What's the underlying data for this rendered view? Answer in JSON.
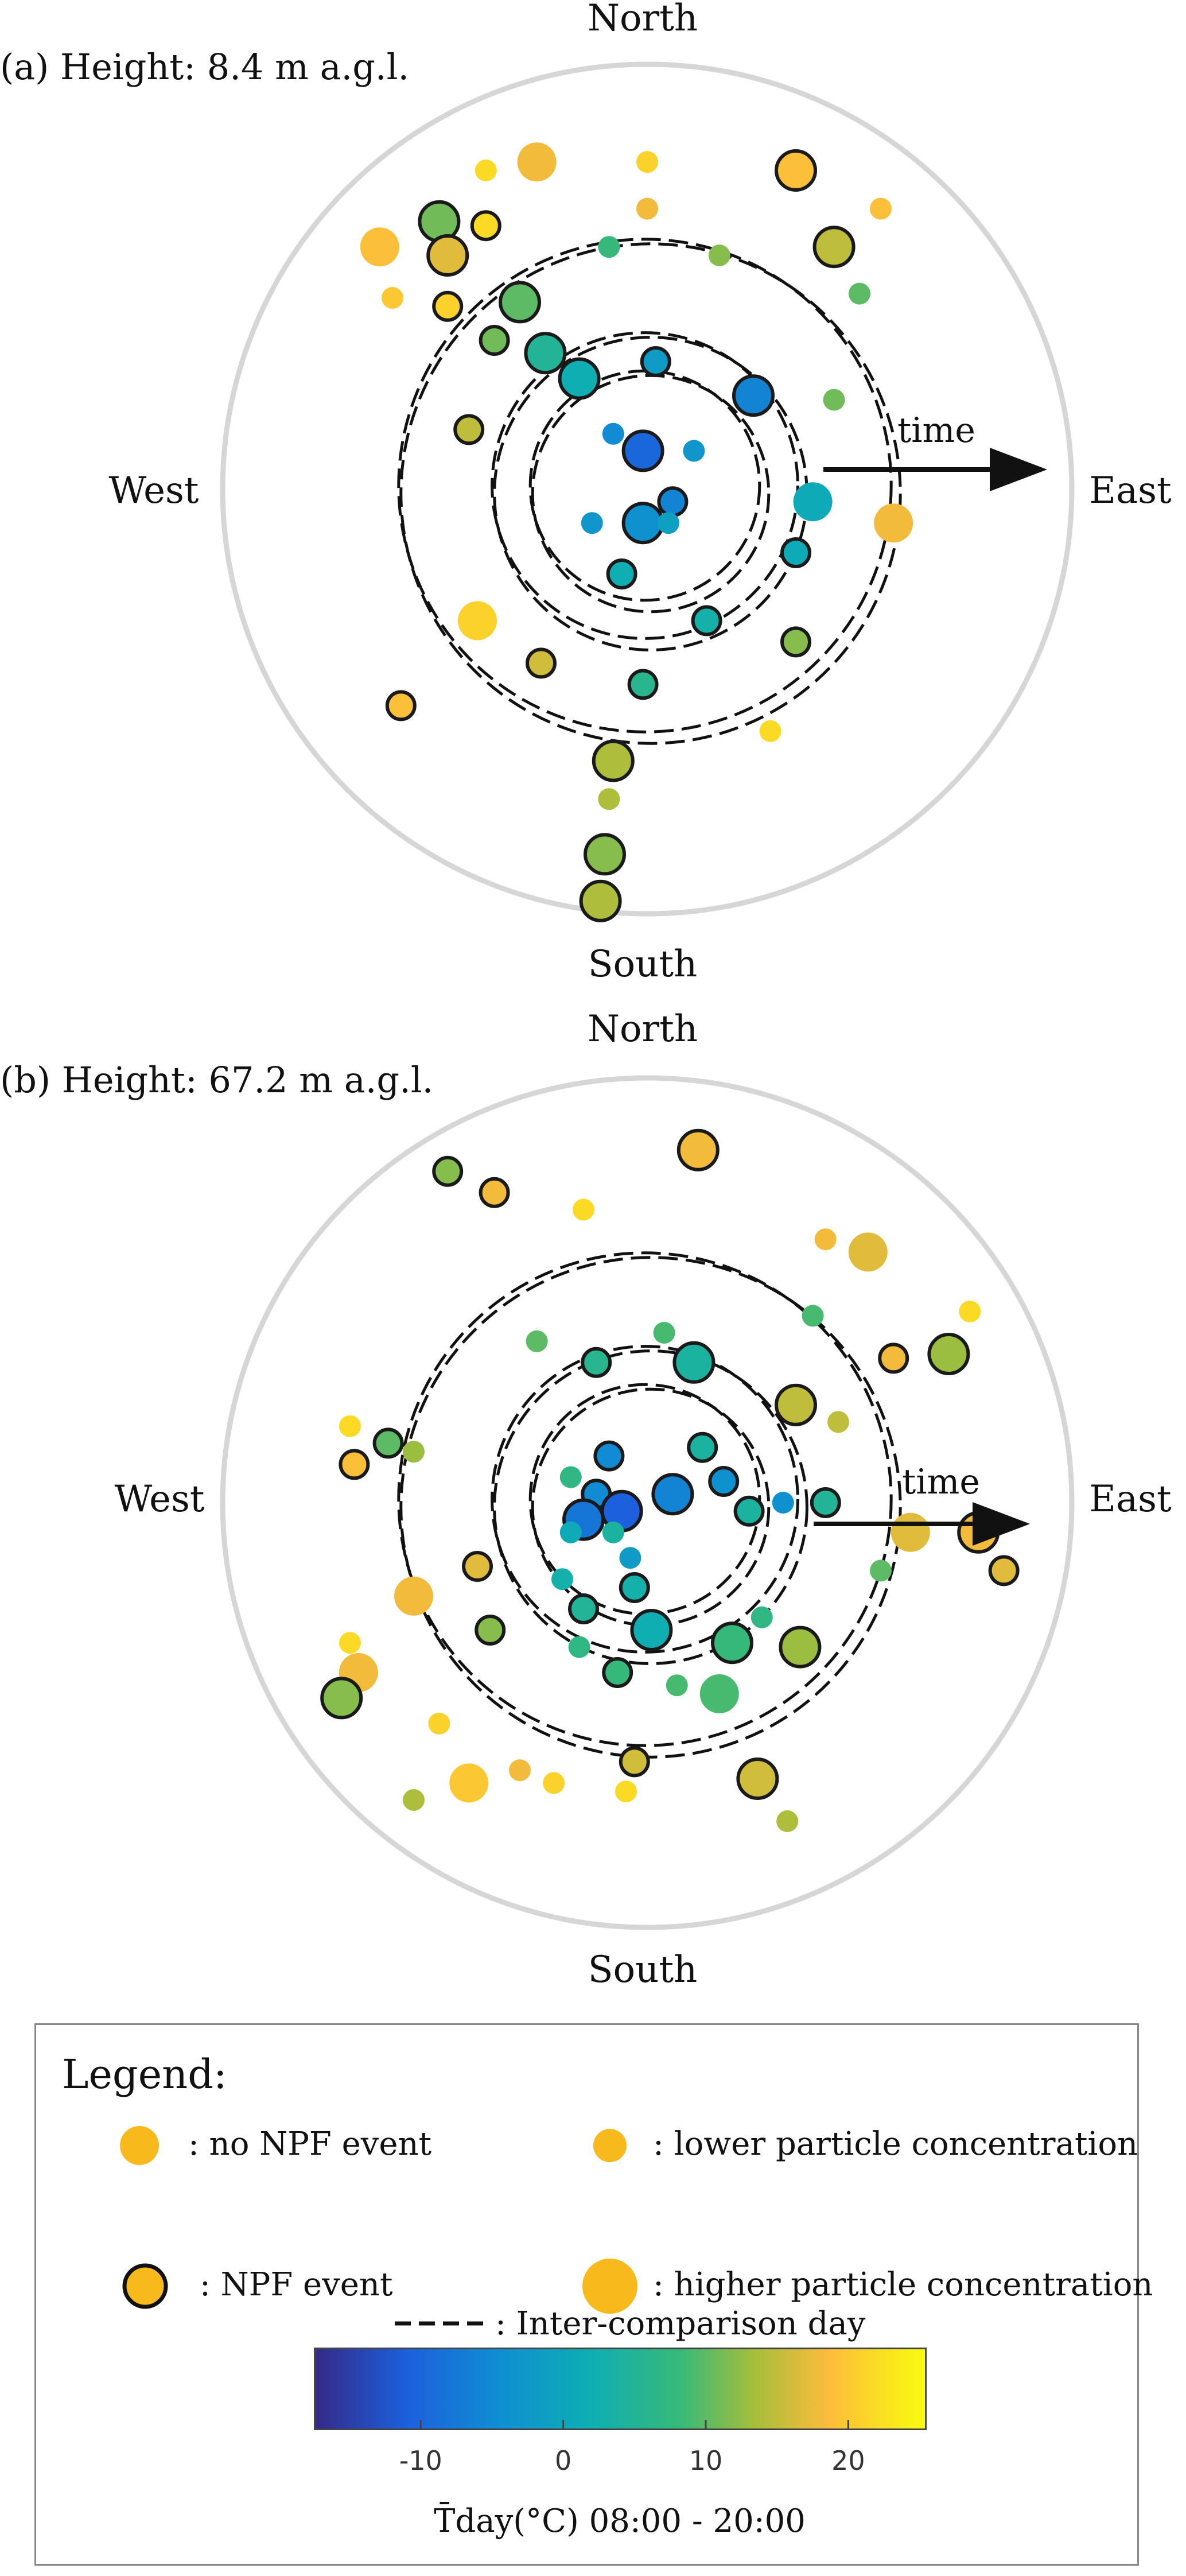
{
  "panels": [
    {
      "title": "(a) Height: 8.4 m a.g.l.",
      "north": "North",
      "south": "South",
      "west": "West",
      "east": "East",
      "time_label": "time"
    },
    {
      "title": "(b) Height: 67.2 m a.g.l.",
      "north": "North",
      "south": "South",
      "west": "West",
      "east": "East",
      "time_label": "time"
    }
  ],
  "legend": {
    "title": "Legend:",
    "items": [
      {
        "symbol": "filled-circle-small",
        "label": ":  no NPF event"
      },
      {
        "symbol": "outlined-circle",
        "label": ":  NPF event"
      },
      {
        "symbol": "filled-circle-small",
        "label": ":  lower particle concentration"
      },
      {
        "symbol": "filled-circle-large",
        "label": ":  higher particle concentration"
      },
      {
        "symbol": "dashed-line",
        "label": ":  Inter-comparison day"
      }
    ],
    "colorbar": {
      "ticks": [
        "-10",
        "0",
        "10",
        "20"
      ],
      "tick_values": [
        -10,
        0,
        10,
        20
      ],
      "range": [
        -17.5,
        25.5
      ],
      "label": "T̄day(°C) 08:00 - 20:00",
      "colormap": "parula"
    },
    "symbol_color": "#f7b91c"
  },
  "chart_data": [
    {
      "type": "scatter",
      "title": "(a) Height: 8.4 m a.g.l.",
      "projection": "polar (wind direction plot, time increasing outward)",
      "color_variable": "mean day temperature (°C) 08:00 - 20:00",
      "inter_comparison_rings_ratio": [
        0.27,
        0.36,
        0.58
      ],
      "points": [
        {
          "x": -0.38,
          "y": 0.75,
          "T": 22,
          "npf": false,
          "size": "small"
        },
        {
          "x": -0.26,
          "y": 0.77,
          "T": 18,
          "npf": false,
          "size": "large"
        },
        {
          "x": 0.0,
          "y": 0.77,
          "T": 21,
          "npf": false,
          "size": "small"
        },
        {
          "x": 0.35,
          "y": 0.75,
          "T": 19,
          "npf": true,
          "size": "large"
        },
        {
          "x": 0.55,
          "y": 0.66,
          "T": 19,
          "npf": false,
          "size": "small"
        },
        {
          "x": 0.0,
          "y": 0.66,
          "T": 18,
          "npf": false,
          "size": "small"
        },
        {
          "x": -0.49,
          "y": 0.63,
          "T": 11,
          "npf": true,
          "size": "large"
        },
        {
          "x": -0.38,
          "y": 0.62,
          "T": 22,
          "npf": true,
          "size": "small"
        },
        {
          "x": -0.47,
          "y": 0.55,
          "T": 17,
          "npf": true,
          "size": "large"
        },
        {
          "x": -0.63,
          "y": 0.57,
          "T": 19,
          "npf": false,
          "size": "large"
        },
        {
          "x": -0.09,
          "y": 0.57,
          "T": 8,
          "npf": false,
          "size": "small"
        },
        {
          "x": 0.17,
          "y": 0.55,
          "T": 12,
          "npf": false,
          "size": "small"
        },
        {
          "x": 0.44,
          "y": 0.57,
          "T": 15,
          "npf": true,
          "size": "large"
        },
        {
          "x": -0.6,
          "y": 0.45,
          "T": 20,
          "npf": false,
          "size": "small"
        },
        {
          "x": -0.47,
          "y": 0.43,
          "T": 21,
          "npf": true,
          "size": "small"
        },
        {
          "x": -0.3,
          "y": 0.44,
          "T": 10,
          "npf": true,
          "size": "large"
        },
        {
          "x": 0.5,
          "y": 0.46,
          "T": 10,
          "npf": false,
          "size": "small"
        },
        {
          "x": -0.36,
          "y": 0.35,
          "T": 11,
          "npf": true,
          "size": "small"
        },
        {
          "x": -0.24,
          "y": 0.32,
          "T": 5,
          "npf": true,
          "size": "large"
        },
        {
          "x": -0.16,
          "y": 0.26,
          "T": 2,
          "npf": true,
          "size": "large"
        },
        {
          "x": 0.02,
          "y": 0.3,
          "T": -2,
          "npf": true,
          "size": "small"
        },
        {
          "x": 0.25,
          "y": 0.22,
          "T": -6,
          "npf": true,
          "size": "large"
        },
        {
          "x": -0.42,
          "y": 0.14,
          "T": 15,
          "npf": true,
          "size": "small"
        },
        {
          "x": 0.44,
          "y": 0.21,
          "T": 11,
          "npf": false,
          "size": "small"
        },
        {
          "x": -0.08,
          "y": 0.13,
          "T": -5,
          "npf": false,
          "size": "small"
        },
        {
          "x": -0.01,
          "y": 0.09,
          "T": -10,
          "npf": true,
          "size": "large"
        },
        {
          "x": 0.11,
          "y": 0.09,
          "T": -3,
          "npf": false,
          "size": "small"
        },
        {
          "x": 0.06,
          "y": -0.03,
          "T": -6,
          "npf": true,
          "size": "small"
        },
        {
          "x": -0.13,
          "y": -0.08,
          "T": -3,
          "npf": false,
          "size": "small"
        },
        {
          "x": -0.01,
          "y": -0.08,
          "T": -4,
          "npf": true,
          "size": "large"
        },
        {
          "x": 0.05,
          "y": -0.08,
          "T": -1,
          "npf": false,
          "size": "small"
        },
        {
          "x": -0.06,
          "y": -0.2,
          "T": 2,
          "npf": true,
          "size": "small"
        },
        {
          "x": 0.35,
          "y": -0.15,
          "T": 1,
          "npf": true,
          "size": "small"
        },
        {
          "x": -0.4,
          "y": -0.31,
          "T": 21,
          "npf": false,
          "size": "large"
        },
        {
          "x": 0.39,
          "y": -0.03,
          "T": 1,
          "npf": false,
          "size": "large"
        },
        {
          "x": -0.25,
          "y": -0.41,
          "T": 16,
          "npf": true,
          "size": "small"
        },
        {
          "x": 0.14,
          "y": -0.31,
          "T": 3,
          "npf": true,
          "size": "small"
        },
        {
          "x": 0.35,
          "y": -0.36,
          "T": 12,
          "npf": true,
          "size": "small"
        },
        {
          "x": -0.01,
          "y": -0.46,
          "T": 6,
          "npf": true,
          "size": "small"
        },
        {
          "x": -0.08,
          "y": -0.64,
          "T": 14,
          "npf": true,
          "size": "large"
        },
        {
          "x": -0.09,
          "y": -0.73,
          "T": 14,
          "npf": false,
          "size": "small"
        },
        {
          "x": -0.1,
          "y": -0.86,
          "T": 12,
          "npf": true,
          "size": "large"
        },
        {
          "x": 0.29,
          "y": -0.57,
          "T": 22,
          "npf": false,
          "size": "small"
        },
        {
          "x": -0.58,
          "y": -0.51,
          "T": 19,
          "npf": true,
          "size": "small"
        },
        {
          "x": -0.11,
          "y": -0.97,
          "T": 14,
          "npf": true,
          "size": "large"
        },
        {
          "x": 0.58,
          "y": -0.08,
          "T": 18,
          "npf": false,
          "size": "large"
        }
      ]
    },
    {
      "type": "scatter",
      "title": "(b) Height: 67.2 m a.g.l.",
      "projection": "polar (wind direction plot, time increasing outward)",
      "color_variable": "mean day temperature (°C) 08:00 - 20:00",
      "inter_comparison_rings_ratio": [
        0.27,
        0.36,
        0.58
      ],
      "points": [
        {
          "x": 0.12,
          "y": 0.83,
          "T": 18,
          "npf": true,
          "size": "large"
        },
        {
          "x": -0.47,
          "y": 0.78,
          "T": 12,
          "npf": true,
          "size": "small"
        },
        {
          "x": -0.36,
          "y": 0.73,
          "T": 18,
          "npf": true,
          "size": "small"
        },
        {
          "x": -0.15,
          "y": 0.69,
          "T": 22,
          "npf": false,
          "size": "small"
        },
        {
          "x": 0.42,
          "y": 0.62,
          "T": 18,
          "npf": false,
          "size": "small"
        },
        {
          "x": 0.52,
          "y": 0.59,
          "T": 17,
          "npf": false,
          "size": "large"
        },
        {
          "x": 0.39,
          "y": 0.44,
          "T": 9,
          "npf": false,
          "size": "small"
        },
        {
          "x": 0.76,
          "y": 0.45,
          "T": 22,
          "npf": false,
          "size": "small"
        },
        {
          "x": 0.71,
          "y": 0.35,
          "T": 13,
          "npf": true,
          "size": "large"
        },
        {
          "x": 0.58,
          "y": 0.34,
          "T": 18,
          "npf": true,
          "size": "small"
        },
        {
          "x": -0.26,
          "y": 0.38,
          "T": 10,
          "npf": false,
          "size": "small"
        },
        {
          "x": 0.04,
          "y": 0.4,
          "T": 9,
          "npf": false,
          "size": "small"
        },
        {
          "x": -0.12,
          "y": 0.33,
          "T": 6,
          "npf": true,
          "size": "small"
        },
        {
          "x": 0.11,
          "y": 0.33,
          "T": 4,
          "npf": true,
          "size": "large"
        },
        {
          "x": 0.35,
          "y": 0.23,
          "T": 15,
          "npf": true,
          "size": "large"
        },
        {
          "x": 0.45,
          "y": 0.19,
          "T": 15,
          "npf": false,
          "size": "small"
        },
        {
          "x": -0.7,
          "y": 0.18,
          "T": 22,
          "npf": false,
          "size": "small"
        },
        {
          "x": -0.61,
          "y": 0.14,
          "T": 10,
          "npf": true,
          "size": "small"
        },
        {
          "x": -0.69,
          "y": 0.09,
          "T": 19,
          "npf": true,
          "size": "small"
        },
        {
          "x": -0.55,
          "y": 0.12,
          "T": 13,
          "npf": false,
          "size": "small"
        },
        {
          "x": -0.09,
          "y": 0.11,
          "T": -5,
          "npf": true,
          "size": "small"
        },
        {
          "x": 0.13,
          "y": 0.13,
          "T": 4,
          "npf": true,
          "size": "small"
        },
        {
          "x": -0.18,
          "y": 0.06,
          "T": 7,
          "npf": false,
          "size": "small"
        },
        {
          "x": -0.12,
          "y": 0.02,
          "T": -5,
          "npf": true,
          "size": "small"
        },
        {
          "x": 0.06,
          "y": 0.02,
          "T": -6,
          "npf": true,
          "size": "large"
        },
        {
          "x": 0.18,
          "y": 0.05,
          "T": -4,
          "npf": true,
          "size": "small"
        },
        {
          "x": 0.24,
          "y": -0.02,
          "T": 4,
          "npf": true,
          "size": "small"
        },
        {
          "x": 0.32,
          "y": 0.0,
          "T": -4,
          "npf": false,
          "size": "small"
        },
        {
          "x": 0.42,
          "y": 0.0,
          "T": 5,
          "npf": true,
          "size": "small"
        },
        {
          "x": -0.06,
          "y": -0.02,
          "T": -11,
          "npf": true,
          "size": "large"
        },
        {
          "x": -0.15,
          "y": -0.04,
          "T": -8,
          "npf": true,
          "size": "large"
        },
        {
          "x": -0.18,
          "y": -0.07,
          "T": 1,
          "npf": false,
          "size": "small"
        },
        {
          "x": -0.08,
          "y": -0.07,
          "T": 4,
          "npf": false,
          "size": "small"
        },
        {
          "x": -0.04,
          "y": -0.13,
          "T": -2,
          "npf": false,
          "size": "small"
        },
        {
          "x": 0.78,
          "y": -0.07,
          "T": 18,
          "npf": true,
          "size": "large"
        },
        {
          "x": 0.62,
          "y": -0.07,
          "T": 17,
          "npf": false,
          "size": "large"
        },
        {
          "x": -0.4,
          "y": -0.15,
          "T": 17,
          "npf": true,
          "size": "small"
        },
        {
          "x": -0.2,
          "y": -0.18,
          "T": 3,
          "npf": false,
          "size": "small"
        },
        {
          "x": -0.03,
          "y": -0.2,
          "T": 3,
          "npf": true,
          "size": "small"
        },
        {
          "x": 0.55,
          "y": -0.16,
          "T": 10,
          "npf": false,
          "size": "small"
        },
        {
          "x": 0.84,
          "y": -0.16,
          "T": 17,
          "npf": true,
          "size": "small"
        },
        {
          "x": -0.55,
          "y": -0.22,
          "T": 18,
          "npf": false,
          "size": "large"
        },
        {
          "x": -0.15,
          "y": -0.25,
          "T": 5,
          "npf": true,
          "size": "small"
        },
        {
          "x": -0.37,
          "y": -0.3,
          "T": 12,
          "npf": true,
          "size": "small"
        },
        {
          "x": -0.16,
          "y": -0.34,
          "T": 7,
          "npf": false,
          "size": "small"
        },
        {
          "x": 0.01,
          "y": -0.3,
          "T": 2,
          "npf": true,
          "size": "large"
        },
        {
          "x": 0.27,
          "y": -0.27,
          "T": 7,
          "npf": false,
          "size": "small"
        },
        {
          "x": 0.2,
          "y": -0.33,
          "T": 8,
          "npf": true,
          "size": "large"
        },
        {
          "x": 0.36,
          "y": -0.34,
          "T": 13,
          "npf": true,
          "size": "large"
        },
        {
          "x": -0.7,
          "y": -0.33,
          "T": 22,
          "npf": false,
          "size": "small"
        },
        {
          "x": -0.68,
          "y": -0.4,
          "T": 18,
          "npf": false,
          "size": "large"
        },
        {
          "x": -0.07,
          "y": -0.4,
          "T": 8,
          "npf": true,
          "size": "small"
        },
        {
          "x": 0.07,
          "y": -0.43,
          "T": 9,
          "npf": false,
          "size": "small"
        },
        {
          "x": 0.17,
          "y": -0.45,
          "T": 9,
          "npf": false,
          "size": "large"
        },
        {
          "x": -0.72,
          "y": -0.46,
          "T": 12,
          "npf": true,
          "size": "large"
        },
        {
          "x": -0.49,
          "y": -0.52,
          "T": 21,
          "npf": false,
          "size": "small"
        },
        {
          "x": -0.42,
          "y": -0.66,
          "T": 20,
          "npf": false,
          "size": "large"
        },
        {
          "x": -0.3,
          "y": -0.63,
          "T": 18,
          "npf": false,
          "size": "small"
        },
        {
          "x": -0.22,
          "y": -0.66,
          "T": 21,
          "npf": false,
          "size": "small"
        },
        {
          "x": -0.03,
          "y": -0.61,
          "T": 16,
          "npf": true,
          "size": "small"
        },
        {
          "x": -0.05,
          "y": -0.68,
          "T": 22,
          "npf": false,
          "size": "small"
        },
        {
          "x": -0.55,
          "y": -0.7,
          "T": 14,
          "npf": false,
          "size": "small"
        },
        {
          "x": 0.26,
          "y": -0.65,
          "T": 16,
          "npf": true,
          "size": "large"
        },
        {
          "x": 0.33,
          "y": -0.75,
          "T": 14,
          "npf": false,
          "size": "small"
        }
      ]
    }
  ]
}
